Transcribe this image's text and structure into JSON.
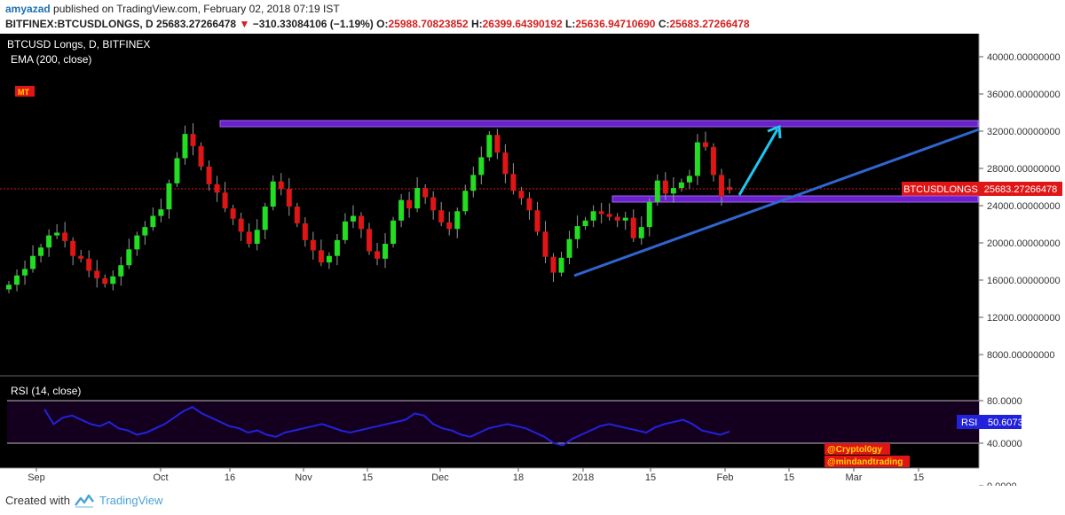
{
  "header": {
    "author": "amyazad",
    "published_text": " published on TradingView.com, February 02, 2018 07:19 IST",
    "symbol": "BITFINEX:BTCUSDLONGS, D",
    "last": "25683.27266478",
    "change_arrow": "▼",
    "change": "−310.33084106 (−1.19%)",
    "o_label": "O:",
    "o": "25988.70823852",
    "h_label": "H:",
    "h": "26399.64390192",
    "l_label": "L:",
    "l": "25636.94710690",
    "c_label": "C:",
    "c": "25683.27266478"
  },
  "legend": {
    "title": "BTCUSD Longs, D, BITFINEX",
    "ema": "EMA (200, close)",
    "badge": "MT"
  },
  "price_axis": {
    "ticks": [
      "40000.00000000",
      "36000.00000000",
      "32000.00000000",
      "28000.00000000",
      "24000.00000000",
      "20000.00000000",
      "16000.00000000",
      "12000.00000000",
      "8000.00000000"
    ],
    "tick_values": [
      40000,
      36000,
      32000,
      28000,
      24000,
      20000,
      16000,
      12000,
      8000
    ],
    "current_label": "BTCUSDLONGS",
    "current_value": "25683.27266478",
    "current_numeric": 25683.27
  },
  "rsi_panel": {
    "title": "RSI (14, close)",
    "ticks": [
      "80.0000",
      "40.0000",
      "0.0000"
    ],
    "tick_values": [
      80,
      40,
      0
    ],
    "label": "RSI",
    "value": "50.6073",
    "watermark1": "@Cryptol0gy",
    "watermark2": "@mindandtrading"
  },
  "time_axis": {
    "labels": [
      "Sep",
      "Oct",
      "16",
      "Nov",
      "15",
      "Dec",
      "18",
      "2018",
      "15",
      "Feb",
      "15",
      "Mar",
      "15"
    ]
  },
  "colors": {
    "bg": "#000000",
    "up": "#22dd22",
    "down": "#e01515",
    "trend": "#2f66d0",
    "zone": "#7b2fd6",
    "arrow": "#1ec8f0",
    "rsi": "#2222dd",
    "current": "#e01515"
  },
  "chart_data": {
    "type": "candlestick",
    "title": "BTCUSD Longs, D, BITFINEX",
    "y_range": [
      5000,
      42000
    ],
    "x_labels": [
      "Sep",
      "Oct",
      "16",
      "Nov",
      "15",
      "Dec",
      "18",
      "2018",
      "15",
      "Feb",
      "15",
      "Mar",
      "15"
    ],
    "closes": [
      15500,
      16500,
      17200,
      18600,
      19500,
      20800,
      21100,
      20200,
      18600,
      18300,
      17000,
      16200,
      15600,
      16400,
      17600,
      19300,
      20800,
      21700,
      22900,
      23600,
      26400,
      29100,
      31700,
      30400,
      28200,
      26300,
      25400,
      23700,
      22600,
      21200,
      19900,
      21400,
      23900,
      26600,
      25800,
      23900,
      22100,
      20300,
      19200,
      17900,
      18600,
      20300,
      22300,
      22900,
      21500,
      19100,
      18300,
      19900,
      22400,
      24600,
      23700,
      25900,
      24900,
      23500,
      22200,
      21500,
      23400,
      25600,
      27300,
      29200,
      31600,
      29700,
      27400,
      25600,
      24800,
      23500,
      21200,
      18500,
      16800,
      18400,
      20400,
      21800,
      22400,
      23400,
      23100,
      22800,
      22400,
      22700,
      20500,
      21700,
      24400,
      26700,
      25300,
      25900,
      26500,
      27200,
      30800,
      30300,
      27300,
      25000,
      25683
    ],
    "opens": [
      15000,
      15500,
      16500,
      17200,
      18600,
      19500,
      20800,
      21100,
      20200,
      18600,
      18300,
      17000,
      16200,
      15600,
      16400,
      17600,
      19300,
      20800,
      21700,
      22900,
      23600,
      26400,
      29100,
      31700,
      30400,
      28200,
      26300,
      25400,
      23700,
      22600,
      21200,
      19900,
      21400,
      23900,
      26600,
      25800,
      23900,
      22100,
      20300,
      19200,
      17900,
      18600,
      20300,
      22300,
      22900,
      21500,
      19100,
      18300,
      19900,
      22400,
      24600,
      23700,
      25900,
      24900,
      23500,
      22200,
      21500,
      23400,
      25600,
      27300,
      29200,
      31600,
      29700,
      27400,
      25600,
      24800,
      23500,
      21200,
      18500,
      16800,
      18400,
      20400,
      21800,
      22400,
      23400,
      23100,
      22800,
      22400,
      22700,
      20500,
      21700,
      24400,
      26700,
      25300,
      25900,
      26500,
      27200,
      30800,
      30300,
      27300,
      25988
    ],
    "resistance_zone": [
      32400,
      33000
    ],
    "support_zone": [
      24400,
      25000
    ],
    "rsi": [
      72,
      58,
      64,
      66,
      62,
      58,
      56,
      60,
      54,
      52,
      48,
      50,
      54,
      58,
      64,
      70,
      74,
      68,
      64,
      60,
      56,
      54,
      50,
      52,
      48,
      46,
      50,
      52,
      54,
      56,
      58,
      55,
      52,
      50,
      52,
      54,
      56,
      58,
      60,
      62,
      68,
      66,
      58,
      54,
      52,
      48,
      46,
      50,
      54,
      56,
      58,
      56,
      54,
      50,
      46,
      40,
      38,
      44,
      48,
      52,
      56,
      58,
      56,
      54,
      52,
      50,
      55,
      58,
      60,
      62,
      58,
      52,
      50,
      48,
      51
    ]
  }
}
